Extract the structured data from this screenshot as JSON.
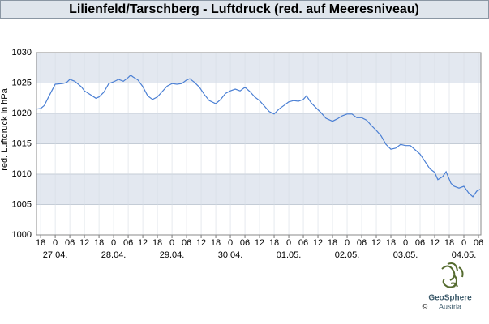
{
  "chart_data": {
    "type": "line",
    "title": "Lilienfeld/Tarschberg - Luftdruck (red. auf Meeresniveau)",
    "ylabel": "red. Luftdruck in hPa",
    "ylim": [
      1000,
      1030
    ],
    "yticks": [
      1000,
      1005,
      1010,
      1015,
      1020,
      1025,
      1030
    ],
    "xlim": [
      -7.7,
      175
    ],
    "xticks": [
      {
        "value": -6,
        "label": "18"
      },
      0,
      {
        "value": 6,
        "label": "06"
      },
      {
        "value": 12,
        "label": "12"
      },
      {
        "value": 18,
        "label": "18"
      },
      {
        "value": 24,
        "label": "0"
      },
      {
        "value": 30,
        "label": "06"
      },
      {
        "value": 36,
        "label": "12"
      },
      {
        "value": 42,
        "label": "18"
      },
      {
        "value": 48,
        "label": "0"
      },
      {
        "value": 54,
        "label": "06"
      },
      {
        "value": 60,
        "label": "12"
      },
      {
        "value": 66,
        "label": "18"
      },
      {
        "value": 72,
        "label": "0"
      },
      {
        "value": 78,
        "label": "06"
      },
      {
        "value": 84,
        "label": "12"
      },
      {
        "value": 90,
        "label": "18"
      },
      {
        "value": 96,
        "label": "0"
      },
      {
        "value": 102,
        "label": "06"
      },
      {
        "value": 108,
        "label": "12"
      },
      {
        "value": 114,
        "label": "18"
      },
      {
        "value": 120,
        "label": "0"
      },
      {
        "value": 126,
        "label": "06"
      },
      {
        "value": 132,
        "label": "12"
      },
      {
        "value": 138,
        "label": "18"
      },
      {
        "value": 144,
        "label": "0"
      },
      {
        "value": 150,
        "label": "06"
      },
      {
        "value": 156,
        "label": "12"
      },
      {
        "value": 162,
        "label": "18"
      },
      {
        "value": 168,
        "label": "0"
      },
      {
        "value": 174,
        "label": "06"
      }
    ],
    "date_ticks": [
      {
        "value": 0,
        "label": "27.04."
      },
      {
        "value": 24,
        "label": "28.04."
      },
      {
        "value": 48,
        "label": "29.04."
      },
      {
        "value": 72,
        "label": "30.04."
      },
      {
        "value": 96,
        "label": "01.05."
      },
      {
        "value": 120,
        "label": "02.05."
      },
      {
        "value": 144,
        "label": "03.05."
      },
      {
        "value": 168,
        "label": "04.05."
      }
    ],
    "grid": true,
    "color": "#4a7fd4",
    "x": [
      -7.7,
      -6,
      -4.5,
      -2.5,
      0,
      3,
      4.7,
      6,
      8,
      10.7,
      12,
      14,
      16.7,
      18,
      20,
      22,
      24,
      26,
      28,
      30,
      31,
      32,
      34,
      36,
      38,
      40,
      42,
      44,
      46,
      48,
      50,
      52,
      54,
      55.3,
      57.3,
      59.3,
      61.3,
      63.3,
      66,
      68,
      70,
      72,
      74,
      76,
      78,
      80,
      82,
      84,
      86,
      88,
      90,
      92,
      94,
      96,
      98,
      100,
      102,
      103.3,
      105.3,
      107.3,
      109.3,
      111.3,
      114,
      116,
      118,
      120,
      122,
      124,
      126,
      128,
      130,
      132,
      134,
      136,
      138,
      140,
      142,
      144,
      146,
      148,
      150,
      152,
      154,
      156,
      157.3,
      159.3,
      160.7,
      162.7,
      164,
      166,
      168,
      170,
      171.7,
      173.3,
      174.7
    ],
    "values": [
      1020.7,
      1020.8,
      1021.3,
      1022.9,
      1024.8,
      1024.9,
      1025.1,
      1025.6,
      1025.3,
      1024.4,
      1023.7,
      1023.2,
      1022.5,
      1022.7,
      1023.5,
      1024.9,
      1025.2,
      1025.6,
      1025.3,
      1025.9,
      1026.3,
      1026,
      1025.5,
      1024.4,
      1022.9,
      1022.3,
      1022.7,
      1023.6,
      1024.5,
      1024.9,
      1024.8,
      1024.9,
      1025.5,
      1025.7,
      1025.1,
      1024.3,
      1023.1,
      1022.1,
      1021.6,
      1022.3,
      1023.3,
      1023.7,
      1024,
      1023.7,
      1024.3,
      1023.6,
      1022.7,
      1022.1,
      1021.2,
      1020.3,
      1019.9,
      1020.7,
      1021.3,
      1021.9,
      1022.1,
      1022,
      1022.3,
      1022.9,
      1021.7,
      1020.9,
      1020.1,
      1019.2,
      1018.7,
      1019.1,
      1019.6,
      1019.9,
      1019.9,
      1019.3,
      1019.3,
      1018.9,
      1018,
      1017.2,
      1016.3,
      1014.9,
      1014.1,
      1014.3,
      1014.9,
      1014.7,
      1014.7,
      1014,
      1013.3,
      1012.1,
      1010.9,
      1010.3,
      1009.1,
      1009.6,
      1010.4,
      1008.5,
      1008,
      1007.7,
      1008,
      1006.9,
      1006.3,
      1007.2,
      1007.5
    ]
  },
  "logo": {
    "name": "GeoSphere",
    "subtitle": "Austria",
    "copyright": "©"
  }
}
